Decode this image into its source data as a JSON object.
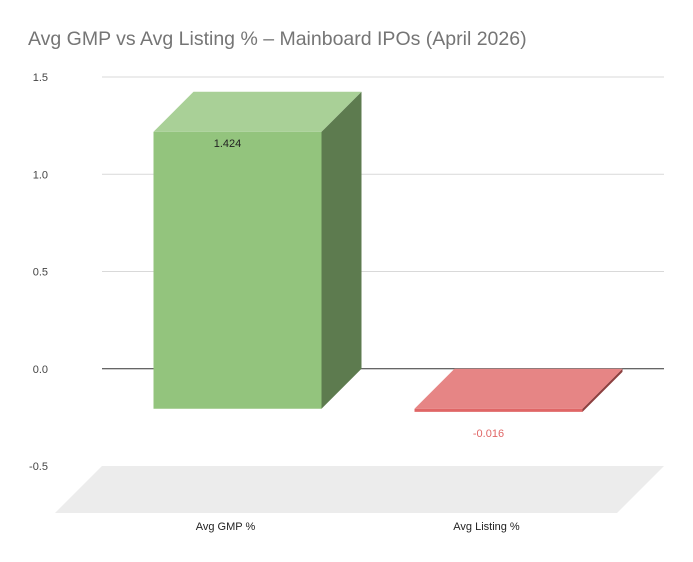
{
  "chart_data": {
    "type": "bar",
    "title": "Avg GMP vs Avg Listing % – Mainboard IPOs (April 2026)",
    "xlabel": "",
    "ylabel": "",
    "categories": [
      "Avg GMP %",
      "Avg Listing %"
    ],
    "values": [
      1.424,
      -0.016
    ],
    "data_labels": [
      "1.424",
      "-0.016"
    ],
    "colors": [
      "#93c47d",
      "#e06666"
    ],
    "yticks": [
      "1.5",
      "1.0",
      "0.5",
      "0.0",
      "-0.5"
    ],
    "ylim": [
      -0.5,
      1.5
    ],
    "grid": true,
    "legend": "none",
    "style": "3d"
  }
}
